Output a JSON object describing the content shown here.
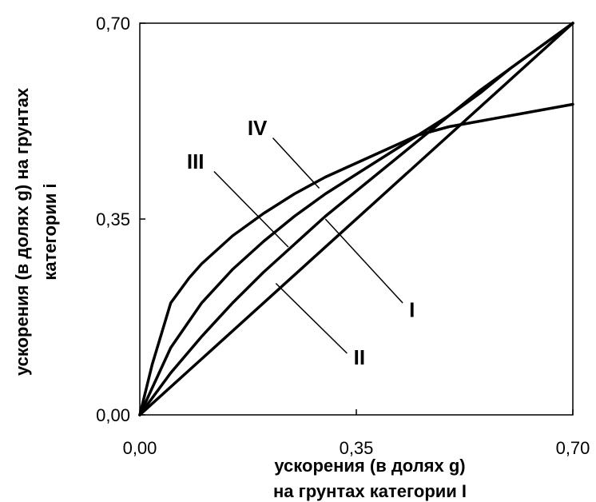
{
  "chart_data": {
    "type": "line",
    "title": "",
    "xlabel_lines": [
      "ускорения (в долях g)",
      "на грунтах категории I"
    ],
    "ylabel_lines": [
      "ускорения (в долях g) на грунтах",
      "категории i"
    ],
    "xlim": [
      0,
      0.7
    ],
    "ylim": [
      0,
      0.7
    ],
    "xticks": [
      0,
      0.35,
      0.7
    ],
    "yticks": [
      0,
      0.35,
      0.7
    ],
    "xtick_labels": [
      "0,00",
      "0,35",
      "0,70"
    ],
    "ytick_labels": [
      "0,00",
      "0,35",
      "0,70"
    ],
    "grid": false,
    "legend": "none",
    "series": [
      {
        "name": "I",
        "x": [
          0,
          0.7
        ],
        "y": [
          0,
          0.7
        ]
      },
      {
        "name": "II",
        "x": [
          0,
          0.05,
          0.1,
          0.15,
          0.2,
          0.25,
          0.3,
          0.35,
          0.4,
          0.45,
          0.5,
          0.55,
          0.6,
          0.65,
          0.7
        ],
        "y": [
          0,
          0.075,
          0.14,
          0.2,
          0.255,
          0.305,
          0.355,
          0.4,
          0.445,
          0.49,
          0.535,
          0.58,
          0.62,
          0.66,
          0.7
        ]
      },
      {
        "name": "III",
        "x": [
          0,
          0.05,
          0.1,
          0.15,
          0.2,
          0.25,
          0.3,
          0.35,
          0.4,
          0.45,
          0.5,
          0.55,
          0.6,
          0.65,
          0.7
        ],
        "y": [
          0,
          0.12,
          0.2,
          0.26,
          0.31,
          0.355,
          0.395,
          0.43,
          0.465,
          0.5,
          0.535,
          0.575,
          0.62,
          0.66,
          0.7
        ]
      },
      {
        "name": "IV",
        "x": [
          0,
          0.02,
          0.05,
          0.08,
          0.1,
          0.15,
          0.2,
          0.25,
          0.3,
          0.35,
          0.4,
          0.45,
          0.5,
          0.55,
          0.6,
          0.65,
          0.7
        ],
        "y": [
          0,
          0.09,
          0.2,
          0.245,
          0.27,
          0.32,
          0.36,
          0.395,
          0.425,
          0.45,
          0.475,
          0.5,
          0.515,
          0.525,
          0.535,
          0.545,
          0.555
        ]
      }
    ],
    "annotations": [
      {
        "text": "IV",
        "series": "IV",
        "label_x": 0.19,
        "label_y": 0.5,
        "line_from": [
          0.215,
          0.495
        ],
        "line_to": [
          0.29,
          0.405
        ]
      },
      {
        "text": "III",
        "series": "III",
        "label_x": 0.09,
        "label_y": 0.44,
        "line_from": [
          0.12,
          0.435
        ],
        "line_to": [
          0.24,
          0.3
        ]
      },
      {
        "text": "I",
        "series": "I",
        "label_x": 0.44,
        "label_y": 0.175,
        "line_from": [
          0.425,
          0.2
        ],
        "line_to": [
          0.3,
          0.35
        ]
      },
      {
        "text": "II",
        "series": "II",
        "label_x": 0.355,
        "label_y": 0.09,
        "line_from": [
          0.335,
          0.11
        ],
        "line_to": [
          0.22,
          0.235
        ]
      }
    ]
  }
}
